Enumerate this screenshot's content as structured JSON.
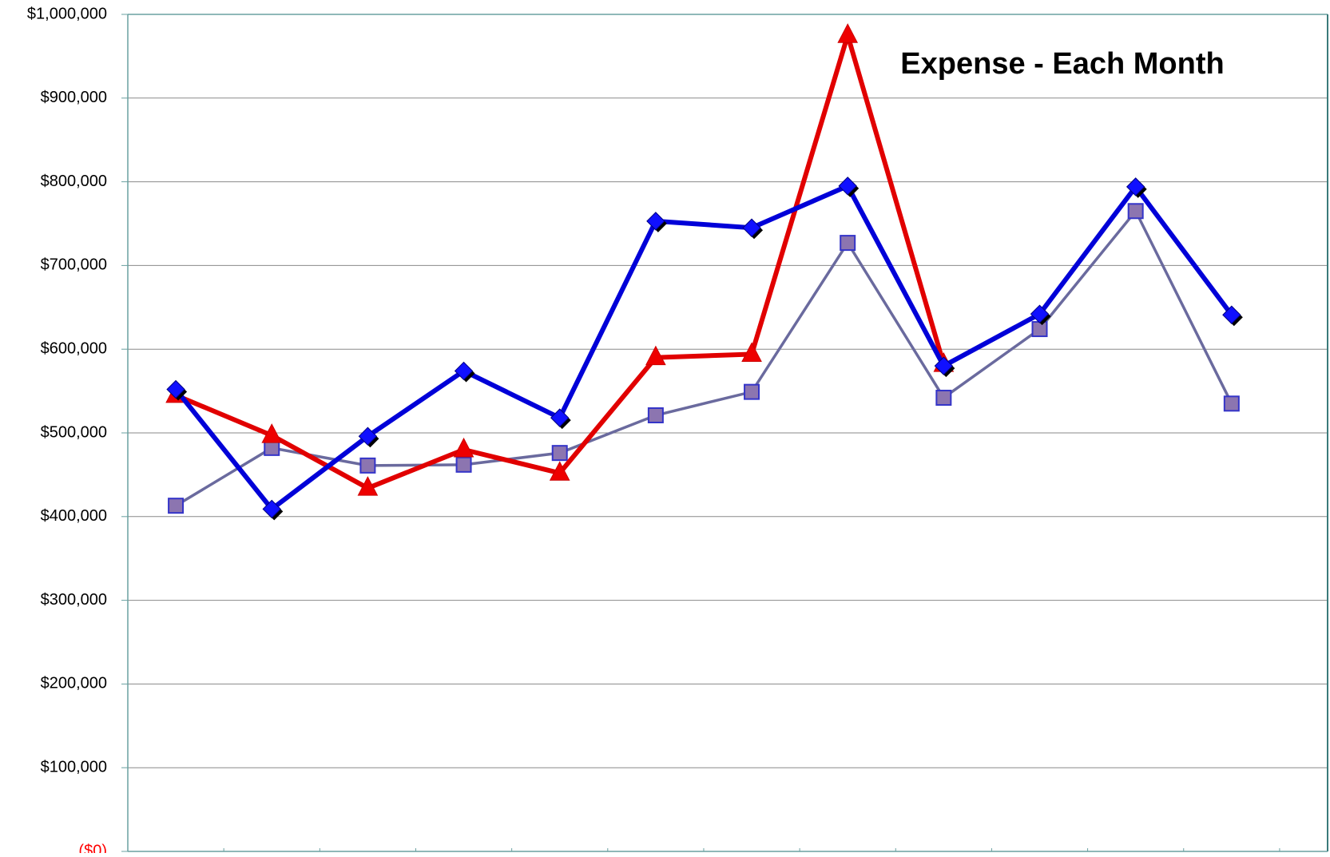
{
  "chart_data": {
    "type": "line",
    "title": "Expense - Each Month",
    "xlabel": "",
    "ylabel": "",
    "ylim": [
      0,
      1000000
    ],
    "y_ticks": [
      {
        "value": 1000000,
        "label": "$1,000,000"
      },
      {
        "value": 900000,
        "label": "$900,000"
      },
      {
        "value": 800000,
        "label": "$800,000"
      },
      {
        "value": 700000,
        "label": "$700,000"
      },
      {
        "value": 600000,
        "label": "$600,000"
      },
      {
        "value": 500000,
        "label": "$500,000"
      },
      {
        "value": 400000,
        "label": "$400,000"
      },
      {
        "value": 300000,
        "label": "$300,000"
      },
      {
        "value": 200000,
        "label": "$200,000"
      },
      {
        "value": 100000,
        "label": "$100,000"
      },
      {
        "value": 0,
        "label": "($0)",
        "color": "#ff0000"
      }
    ],
    "grid": true,
    "legend": "none",
    "x_count": 12,
    "series": [
      {
        "color": "#6a6a9e",
        "marker": "square",
        "marker_fill": "#8c75b0",
        "marker_edge": "#3434c8",
        "values": [
          413000,
          482000,
          461000,
          462000,
          476000,
          521000,
          549000,
          727000,
          542000,
          624000,
          765000,
          535000
        ]
      },
      {
        "color": "#e10000",
        "marker": "triangle",
        "marker_fill": "#ee0000",
        "marker_edge": "#cc0000",
        "values": [
          545000,
          497000,
          434000,
          480000,
          452000,
          590000,
          594000,
          975000,
          582000
        ]
      },
      {
        "color": "#0000d8",
        "marker": "diamond",
        "marker_fill": "#1010ff",
        "marker_edge": "#000000",
        "values": [
          552000,
          409000,
          496000,
          574000,
          518000,
          753000,
          745000,
          795000,
          580000,
          642000,
          794000,
          641000
        ]
      }
    ]
  }
}
